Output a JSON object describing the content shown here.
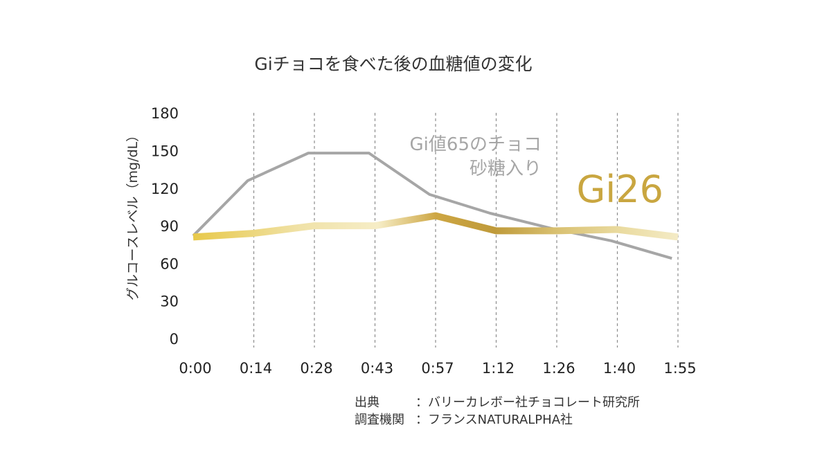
{
  "chart_data": {
    "type": "line",
    "title": "Giチョコを食べた後の血糖値の変化",
    "xlabel": "",
    "ylabel": "グルコースレベル（mg/dL）",
    "x": [
      "0:00",
      "0:14",
      "0:28",
      "0:43",
      "0:57",
      "1:12",
      "1:26",
      "1:40",
      "1:55"
    ],
    "y_ticks": [
      0,
      30,
      60,
      90,
      120,
      150,
      180
    ],
    "ylim": [
      0,
      180
    ],
    "grid": "vertical dashed",
    "series": [
      {
        "name_lines": [
          "Gi値65のチョコ",
          "砂糖入り"
        ],
        "color": "#a6a6a6",
        "points": [
          [
            0,
            82
          ],
          [
            0.9,
            126
          ],
          [
            1.9,
            148
          ],
          [
            2.9,
            148
          ],
          [
            3.9,
            115
          ],
          [
            4.9,
            100
          ],
          [
            5.9,
            88
          ],
          [
            6.9,
            78
          ],
          [
            7.9,
            64
          ]
        ]
      },
      {
        "name": "Gi26",
        "color": "#c9a640",
        "points": [
          [
            0,
            81
          ],
          [
            1,
            84
          ],
          [
            2,
            90
          ],
          [
            3,
            90
          ],
          [
            4,
            98
          ],
          [
            5,
            86
          ],
          [
            6,
            86
          ],
          [
            7,
            87
          ],
          [
            8,
            81
          ]
        ]
      }
    ]
  },
  "source": {
    "label1": "出典",
    "value1": "：バリーカレボー社チョコレート研究所",
    "label2": "調査機関",
    "value2": "：フランスNATURALPHA社"
  }
}
